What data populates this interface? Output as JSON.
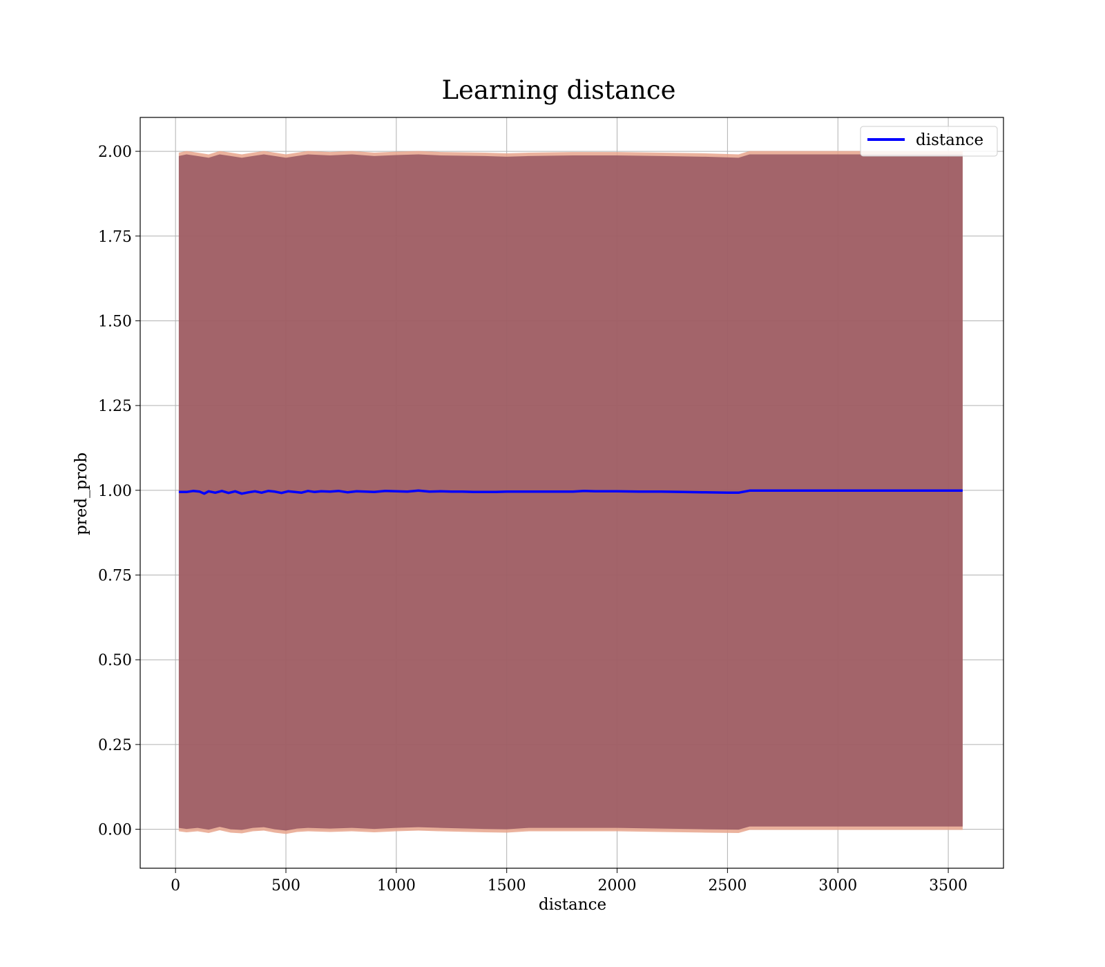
{
  "chart_data": {
    "type": "line",
    "title": "Learning distance",
    "xlabel": "distance",
    "ylabel": "pred_prob",
    "xlim": [
      -160,
      3750
    ],
    "ylim": [
      -0.115,
      2.1
    ],
    "xticks": [
      0,
      500,
      1000,
      1500,
      2000,
      2500,
      3000,
      3500
    ],
    "yticks": [
      0.0,
      0.25,
      0.5,
      0.75,
      1.0,
      1.25,
      1.5,
      1.75,
      2.0
    ],
    "ytick_labels": [
      "0.00",
      "0.25",
      "0.50",
      "0.75",
      "1.00",
      "1.25",
      "1.50",
      "1.75",
      "2.00"
    ],
    "grid": true,
    "legend": {
      "position": "top-right",
      "entries": [
        "distance"
      ]
    },
    "colors": {
      "line": "#0000ff",
      "band_outer": "#e8a48c",
      "band_inner": "#8b4a5a",
      "grid": "#b0b0b0"
    },
    "series": [
      {
        "name": "distance",
        "x": [
          15,
          50,
          80,
          110,
          130,
          150,
          180,
          210,
          240,
          270,
          300,
          330,
          360,
          390,
          420,
          450,
          480,
          510,
          540,
          570,
          600,
          630,
          660,
          700,
          740,
          780,
          820,
          860,
          900,
          950,
          1000,
          1050,
          1100,
          1150,
          1200,
          1250,
          1300,
          1350,
          1400,
          1450,
          1500,
          1550,
          1600,
          1700,
          1800,
          1850,
          1900,
          2000,
          2100,
          2200,
          2300,
          2400,
          2500,
          2550,
          2600,
          2700,
          2800,
          3000,
          3200,
          3400,
          3565
        ],
        "y": [
          0.995,
          0.995,
          0.998,
          0.996,
          0.99,
          0.997,
          0.993,
          0.998,
          0.992,
          0.997,
          0.99,
          0.994,
          0.997,
          0.993,
          0.998,
          0.996,
          0.992,
          0.997,
          0.995,
          0.993,
          0.998,
          0.995,
          0.997,
          0.996,
          0.998,
          0.994,
          0.997,
          0.996,
          0.995,
          0.998,
          0.997,
          0.996,
          0.999,
          0.996,
          0.997,
          0.996,
          0.996,
          0.995,
          0.995,
          0.995,
          0.996,
          0.996,
          0.996,
          0.996,
          0.996,
          0.998,
          0.997,
          0.997,
          0.996,
          0.996,
          0.995,
          0.994,
          0.993,
          0.993,
          0.999,
          0.999,
          0.999,
          0.999,
          0.999,
          0.999,
          0.999
        ]
      }
    ],
    "band": {
      "x": [
        15,
        50,
        100,
        150,
        200,
        250,
        300,
        350,
        400,
        450,
        500,
        550,
        600,
        700,
        800,
        900,
        1000,
        1100,
        1200,
        1400,
        1500,
        1600,
        1800,
        2000,
        2200,
        2400,
        2550,
        2600,
        2800,
        3000,
        3200,
        3400,
        3565
      ],
      "upper": [
        1.99,
        1.995,
        1.99,
        1.985,
        1.995,
        1.99,
        1.985,
        1.99,
        1.995,
        1.99,
        1.985,
        1.99,
        1.995,
        1.992,
        1.995,
        1.99,
        1.993,
        1.995,
        1.992,
        1.99,
        1.988,
        1.99,
        1.992,
        1.992,
        1.99,
        1.988,
        1.985,
        1.995,
        1.995,
        1.995,
        1.995,
        1.995,
        1.995
      ],
      "lower": [
        0.0,
        -0.003,
        0.0,
        -0.005,
        0.003,
        -0.004,
        -0.006,
        0.0,
        0.002,
        -0.004,
        -0.008,
        -0.002,
        0.0,
        -0.002,
        0.0,
        -0.003,
        0.0,
        0.002,
        0.0,
        -0.003,
        -0.004,
        0.0,
        0.0,
        0.0,
        -0.002,
        -0.004,
        -0.005,
        0.004,
        0.004,
        0.004,
        0.004,
        0.004,
        0.004
      ]
    }
  }
}
